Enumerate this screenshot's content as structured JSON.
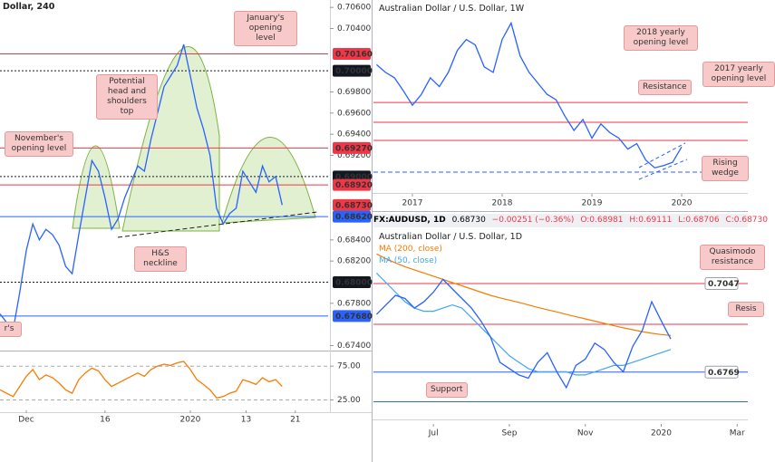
{
  "chart_data": [
    {
      "type": "line",
      "title": "Dollar, 240",
      "color": "#2962ff",
      "x": [
        0,
        1,
        2,
        3,
        4,
        5,
        6,
        7,
        8,
        9,
        10,
        11,
        12,
        13,
        14,
        15,
        16,
        17,
        18,
        19,
        20,
        21,
        22,
        23,
        24,
        25,
        26,
        27,
        28,
        29,
        30,
        31,
        32,
        33,
        34,
        35,
        36,
        37,
        38,
        39,
        40,
        41,
        42,
        43
      ],
      "values": [
        0.677,
        0.6762,
        0.6755,
        0.679,
        0.683,
        0.6855,
        0.684,
        0.685,
        0.6845,
        0.6835,
        0.6815,
        0.6808,
        0.6845,
        0.688,
        0.6915,
        0.6905,
        0.688,
        0.685,
        0.686,
        0.688,
        0.6895,
        0.691,
        0.6905,
        0.6935,
        0.696,
        0.6985,
        0.6995,
        0.7005,
        0.7025,
        0.6995,
        0.6965,
        0.6945,
        0.692,
        0.687,
        0.6855,
        0.6865,
        0.687,
        0.6905,
        0.6895,
        0.6885,
        0.691,
        0.6895,
        0.69,
        0.6873
      ],
      "xlim": [
        0,
        50
      ],
      "xticks": [
        {
          "value": 4,
          "label": "Dec"
        },
        16,
        {
          "value": 29,
          "label": "2020"
        },
        {
          "value": 37.5,
          "label": "13"
        },
        {
          "value": 45,
          "label": "21"
        }
      ],
      "ylim": [
        0.6737,
        0.7067
      ],
      "yticks": [
        {
          "value": 0.706,
          "label": "0.70600"
        },
        {
          "value": 0.704,
          "label": "0.70400"
        },
        {
          "value": 0.698,
          "label": "0.69800"
        },
        {
          "value": 0.696,
          "label": "0.69600"
        },
        {
          "value": 0.694,
          "label": "0.69400"
        },
        {
          "value": 0.692,
          "label": "0.69200"
        },
        {
          "value": 0.684,
          "label": "0.68400"
        },
        {
          "value": 0.682,
          "label": "0.68200"
        },
        {
          "value": 0.678,
          "label": "0.67800"
        },
        {
          "value": 0.674,
          "label": "0.67400"
        }
      ],
      "level_label_style": "filled",
      "levels": [
        {
          "value": 0.7016,
          "label": "0.70160",
          "color": "#f23645",
          "style": "solid"
        },
        {
          "value": 0.7,
          "label": "0.70000",
          "color": "#131722",
          "style": "dotted"
        },
        {
          "value": 0.6927,
          "label": "0.69270",
          "color": "#f23645",
          "style": "solid"
        },
        {
          "value": 0.69,
          "label": "0.69000",
          "color": "#131722",
          "style": "dotted"
        },
        {
          "value": 0.6892,
          "label": "0.68920",
          "color": "#f23645",
          "style": "solid"
        },
        {
          "value": 0.6873,
          "label": "0.68730",
          "color": "#f23645",
          "style": "none"
        },
        {
          "value": 0.6862,
          "label": "0.68620",
          "color": "#2962ff",
          "style": "solid"
        },
        {
          "value": 0.68,
          "label": "0.68000",
          "color": "#131722",
          "style": "dotted"
        },
        {
          "value": 0.6768,
          "label": "0.67680",
          "color": "#2962ff",
          "style": "solid"
        }
      ],
      "annotations": [
        "January's opening level",
        "Potential head and shoulders top",
        "November's opening level",
        "H&S neckline",
        "r's"
      ]
    },
    {
      "type": "line",
      "color": "#f57c00",
      "x": [
        0,
        1,
        2,
        3,
        4,
        5,
        6,
        7,
        8,
        9,
        10,
        11,
        12,
        13,
        14,
        15,
        16,
        17,
        18,
        19,
        20,
        21,
        22,
        23,
        24,
        25,
        26,
        27,
        28,
        29,
        30,
        31,
        32,
        33,
        34,
        35,
        36,
        37,
        38,
        39,
        40,
        41,
        42,
        43
      ],
      "values": [
        40,
        35,
        30,
        45,
        60,
        70,
        55,
        62,
        58,
        50,
        40,
        35,
        55,
        65,
        72,
        68,
        55,
        45,
        50,
        55,
        60,
        65,
        60,
        70,
        75,
        78,
        76,
        80,
        82,
        70,
        55,
        48,
        40,
        28,
        30,
        35,
        38,
        55,
        52,
        48,
        58,
        52,
        55,
        45
      ],
      "xlim": [
        0,
        50
      ],
      "ylim": [
        11,
        94
      ],
      "yticks": [
        {
          "value": 75,
          "label": "75.00"
        },
        {
          "value": 25,
          "label": "25.00"
        }
      ],
      "grid": true
    },
    {
      "type": "line",
      "title": "Australian Dollar / U.S. Dollar, 1W",
      "color": "#2962ff",
      "x": [
        2016.6,
        2016.7,
        2016.8,
        2016.9,
        2017.0,
        2017.1,
        2017.2,
        2017.3,
        2017.4,
        2017.5,
        2017.6,
        2017.7,
        2017.8,
        2017.9,
        2018.0,
        2018.1,
        2018.2,
        2018.3,
        2018.4,
        2018.5,
        2018.6,
        2018.7,
        2018.8,
        2018.9,
        2019.0,
        2019.1,
        2019.2,
        2019.3,
        2019.4,
        2019.5,
        2019.6,
        2019.7,
        2019.8,
        2019.9,
        2020.0
      ],
      "values": [
        0.772,
        0.765,
        0.76,
        0.748,
        0.735,
        0.745,
        0.76,
        0.752,
        0.765,
        0.785,
        0.795,
        0.79,
        0.77,
        0.765,
        0.795,
        0.81,
        0.78,
        0.765,
        0.755,
        0.745,
        0.74,
        0.725,
        0.712,
        0.722,
        0.705,
        0.718,
        0.71,
        0.705,
        0.695,
        0.7,
        0.685,
        0.678,
        0.68,
        0.683,
        0.697
      ],
      "xlim": [
        2016.566,
        2020.737
      ],
      "xticks": [
        2017,
        2018,
        2019,
        2020
      ],
      "ylim": [
        0.655,
        0.831
      ],
      "levels": [
        {
          "value": 0.7375,
          "color": "#f23645",
          "style": "solid"
        },
        {
          "value": 0.7194,
          "color": "#f23645",
          "style": "solid"
        },
        {
          "value": 0.7029,
          "color": "#f23645",
          "style": "solid"
        },
        {
          "value": 0.674,
          "color": "#2962ff",
          "style": "dashed"
        }
      ],
      "annotations": [
        "2018 yearly opening level",
        "Resistance",
        "2017 yearly opening level",
        "Rising wedge"
      ]
    },
    {
      "type": "line",
      "title": "Australian Dollar / U.S. Dollar, 1D",
      "color": "#2962ff",
      "quote": [
        "FX:AUDUSD, 1D",
        "0.68730",
        "−0.00251 (−0.36%)",
        "O:0.68981",
        "H:0.69111",
        "L:0.68706",
        "C:0.68730"
      ],
      "x": [
        5.5,
        5.75,
        6,
        6.25,
        6.5,
        6.75,
        7,
        7.25,
        7.5,
        7.75,
        8,
        8.25,
        8.5,
        8.75,
        9,
        9.25,
        9.5,
        9.75,
        10,
        10.25,
        10.5,
        10.75,
        11,
        11.25,
        11.5,
        11.75,
        12,
        12.25,
        12.5,
        12.75,
        13,
        13.25
      ],
      "values": [
        0.695,
        0.698,
        0.701,
        0.7,
        0.697,
        0.699,
        0.702,
        0.706,
        0.703,
        0.7,
        0.697,
        0.693,
        0.688,
        0.68,
        0.678,
        0.676,
        0.675,
        0.68,
        0.683,
        0.677,
        0.672,
        0.679,
        0.681,
        0.686,
        0.684,
        0.68,
        0.677,
        0.685,
        0.69,
        0.699,
        0.693,
        0.6873
      ],
      "series": [
        {
          "name": "MA (200, close)",
          "color": "#f57c00",
          "values": [
            0.714,
            0.7125,
            0.7112,
            0.71,
            0.709,
            0.708,
            0.707,
            0.706,
            0.705,
            0.704,
            0.703,
            0.702,
            0.701,
            0.7002,
            0.6995,
            0.6988,
            0.698,
            0.6972,
            0.6965,
            0.6958,
            0.695,
            0.6943,
            0.6936,
            0.6929,
            0.6922,
            0.6915,
            0.6908,
            0.6902,
            0.6896,
            0.6891,
            0.6887,
            0.6884
          ]
        },
        {
          "name": "MA (50, close)",
          "color": "#42a5f5",
          "values": [
            0.708,
            0.705,
            0.702,
            0.699,
            0.697,
            0.696,
            0.696,
            0.697,
            0.698,
            0.697,
            0.694,
            0.691,
            0.688,
            0.685,
            0.682,
            0.68,
            0.678,
            0.677,
            0.677,
            0.677,
            0.677,
            0.676,
            0.676,
            0.677,
            0.678,
            0.679,
            0.679,
            0.68,
            0.681,
            0.682,
            0.683,
            0.684
          ]
        }
      ],
      "xlim": [
        5.42,
        15.28
      ],
      "xticks": [
        {
          "value": 7,
          "label": "Jul"
        },
        {
          "value": 9,
          "label": "Sep"
        },
        {
          "value": 11,
          "label": "Nov"
        },
        {
          "value": 13,
          "label": "2020"
        },
        {
          "value": 15,
          "label": "Mar"
        }
      ],
      "ylim": [
        0.6629,
        0.7212
      ],
      "level_label_style": "outlined",
      "levels": [
        {
          "value": 0.7047,
          "label": "0.7047",
          "color": "#f23645",
          "style": "solid"
        },
        {
          "value": 0.6919,
          "color": "#f23645",
          "style": "solid"
        },
        {
          "value": 0.6769,
          "label": "0.6769",
          "color": "#2962ff",
          "style": "solid"
        },
        {
          "value": 0.6676,
          "color": "#2962ff",
          "style": "solid"
        }
      ],
      "annotations": [
        "Quasimodo resistance",
        "Resis",
        "Support"
      ]
    }
  ]
}
